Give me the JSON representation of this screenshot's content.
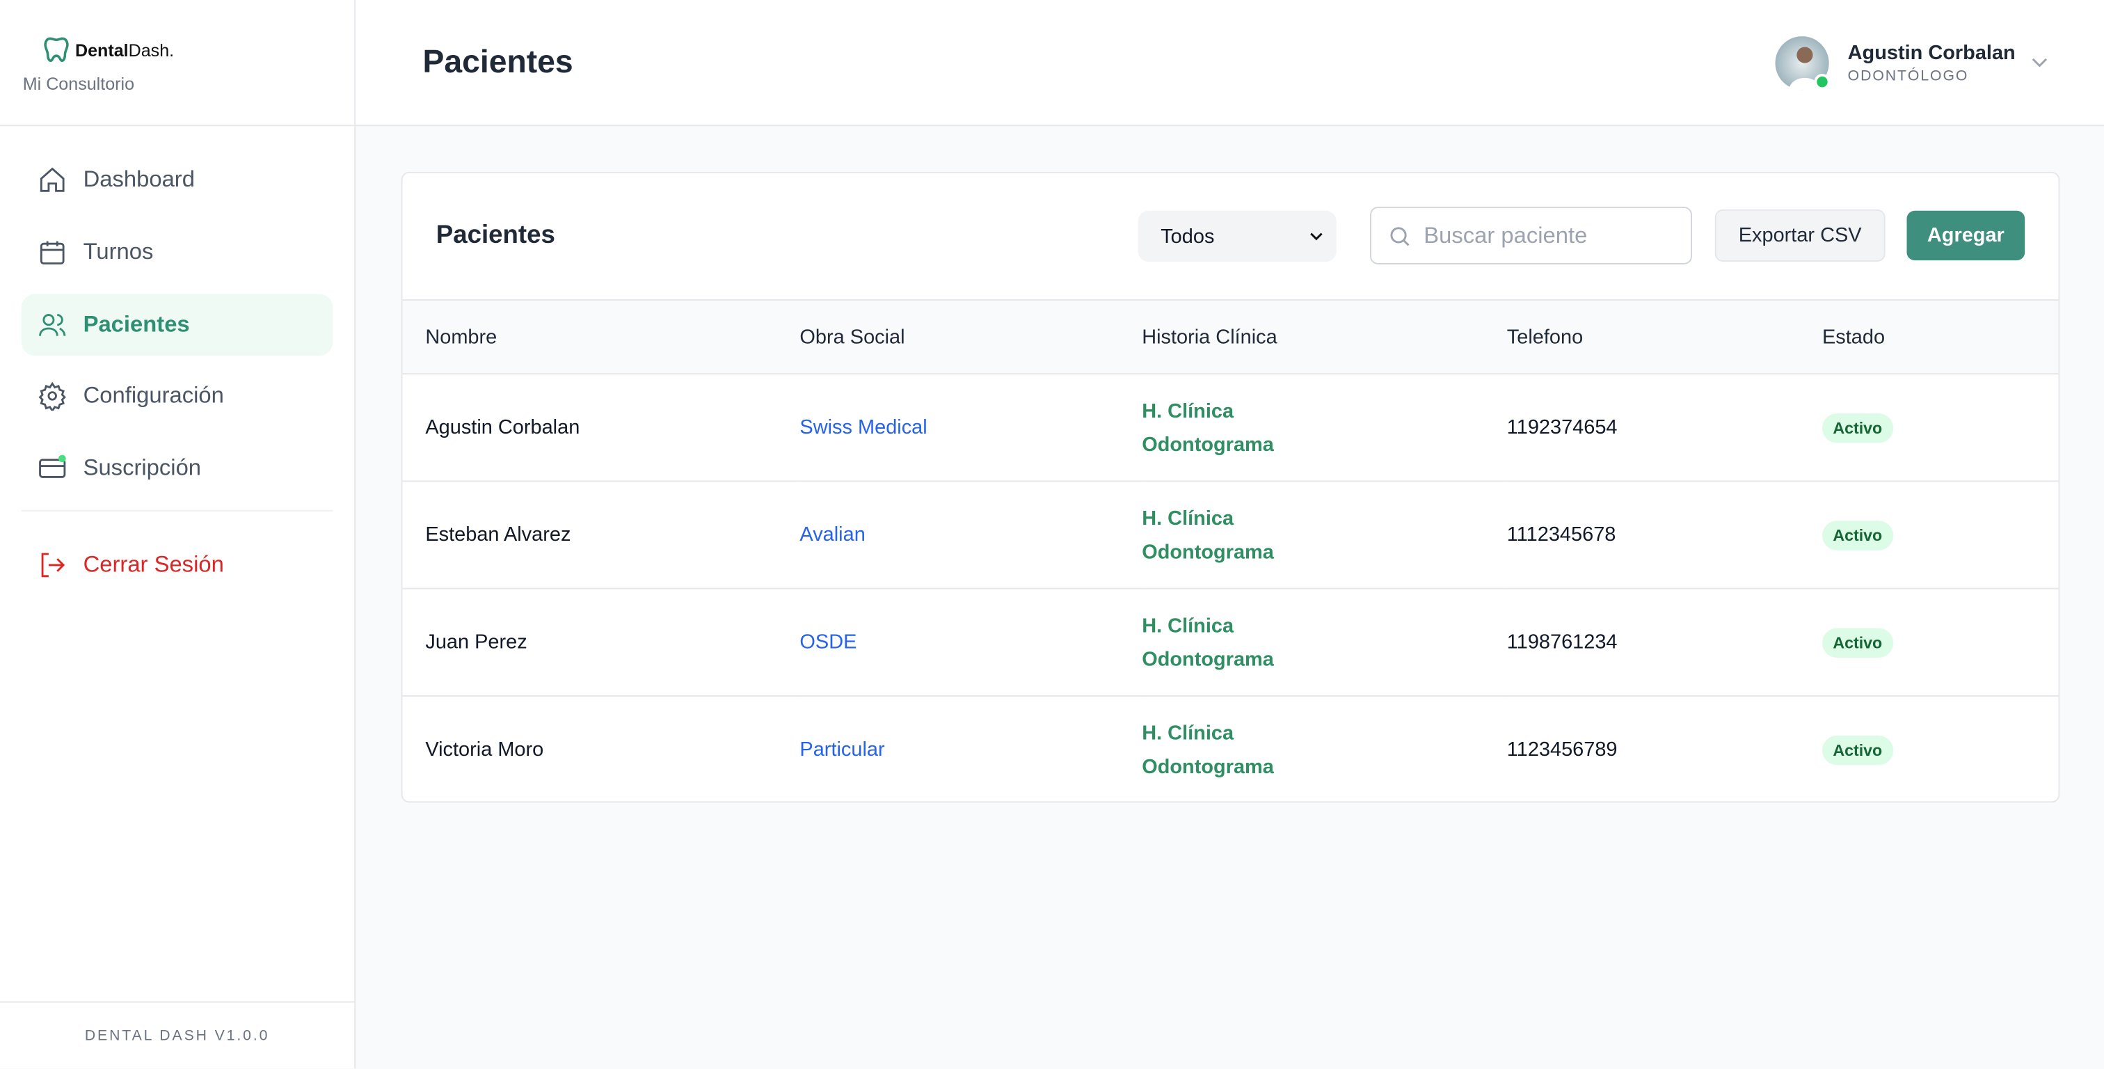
{
  "sidebar": {
    "brand": {
      "bold": "Dental",
      "rest": "Dash."
    },
    "subtitle": "Mi Consultorio",
    "nav": [
      "Dashboard",
      "Turnos",
      "Pacientes",
      "Configuración",
      "Suscripción"
    ],
    "logout": "Cerrar Sesión",
    "version": "DENTAL DASH V1.0.0"
  },
  "header": {
    "title": "Pacientes",
    "user": {
      "name": "Agustin Corbalan",
      "role": "ODONTÓLOGO"
    }
  },
  "panel": {
    "title": "Pacientes",
    "filter": "Todos",
    "search_placeholder": "Buscar paciente",
    "export": "Exportar CSV",
    "add": "Agregar"
  },
  "table": {
    "columns": [
      "Nombre",
      "Obra Social",
      "Historia Clínica",
      "Telefono",
      "Estado"
    ],
    "rows": [
      [
        "Agustin Corbalan",
        "Swiss Medical",
        [
          "H. Clínica",
          "Odontograma"
        ],
        "1192374654",
        "Activo"
      ],
      [
        "Esteban Alvarez",
        "Avalian",
        [
          "H. Clínica",
          "Odontograma"
        ],
        "1112345678",
        "Activo"
      ],
      [
        "Juan Perez",
        "OSDE",
        [
          "H. Clínica",
          "Odontograma"
        ],
        "1198761234",
        "Activo"
      ],
      [
        "Victoria Moro",
        "Particular",
        [
          "H. Clínica",
          "Odontograma"
        ],
        "1123456789",
        "Activo"
      ]
    ]
  }
}
